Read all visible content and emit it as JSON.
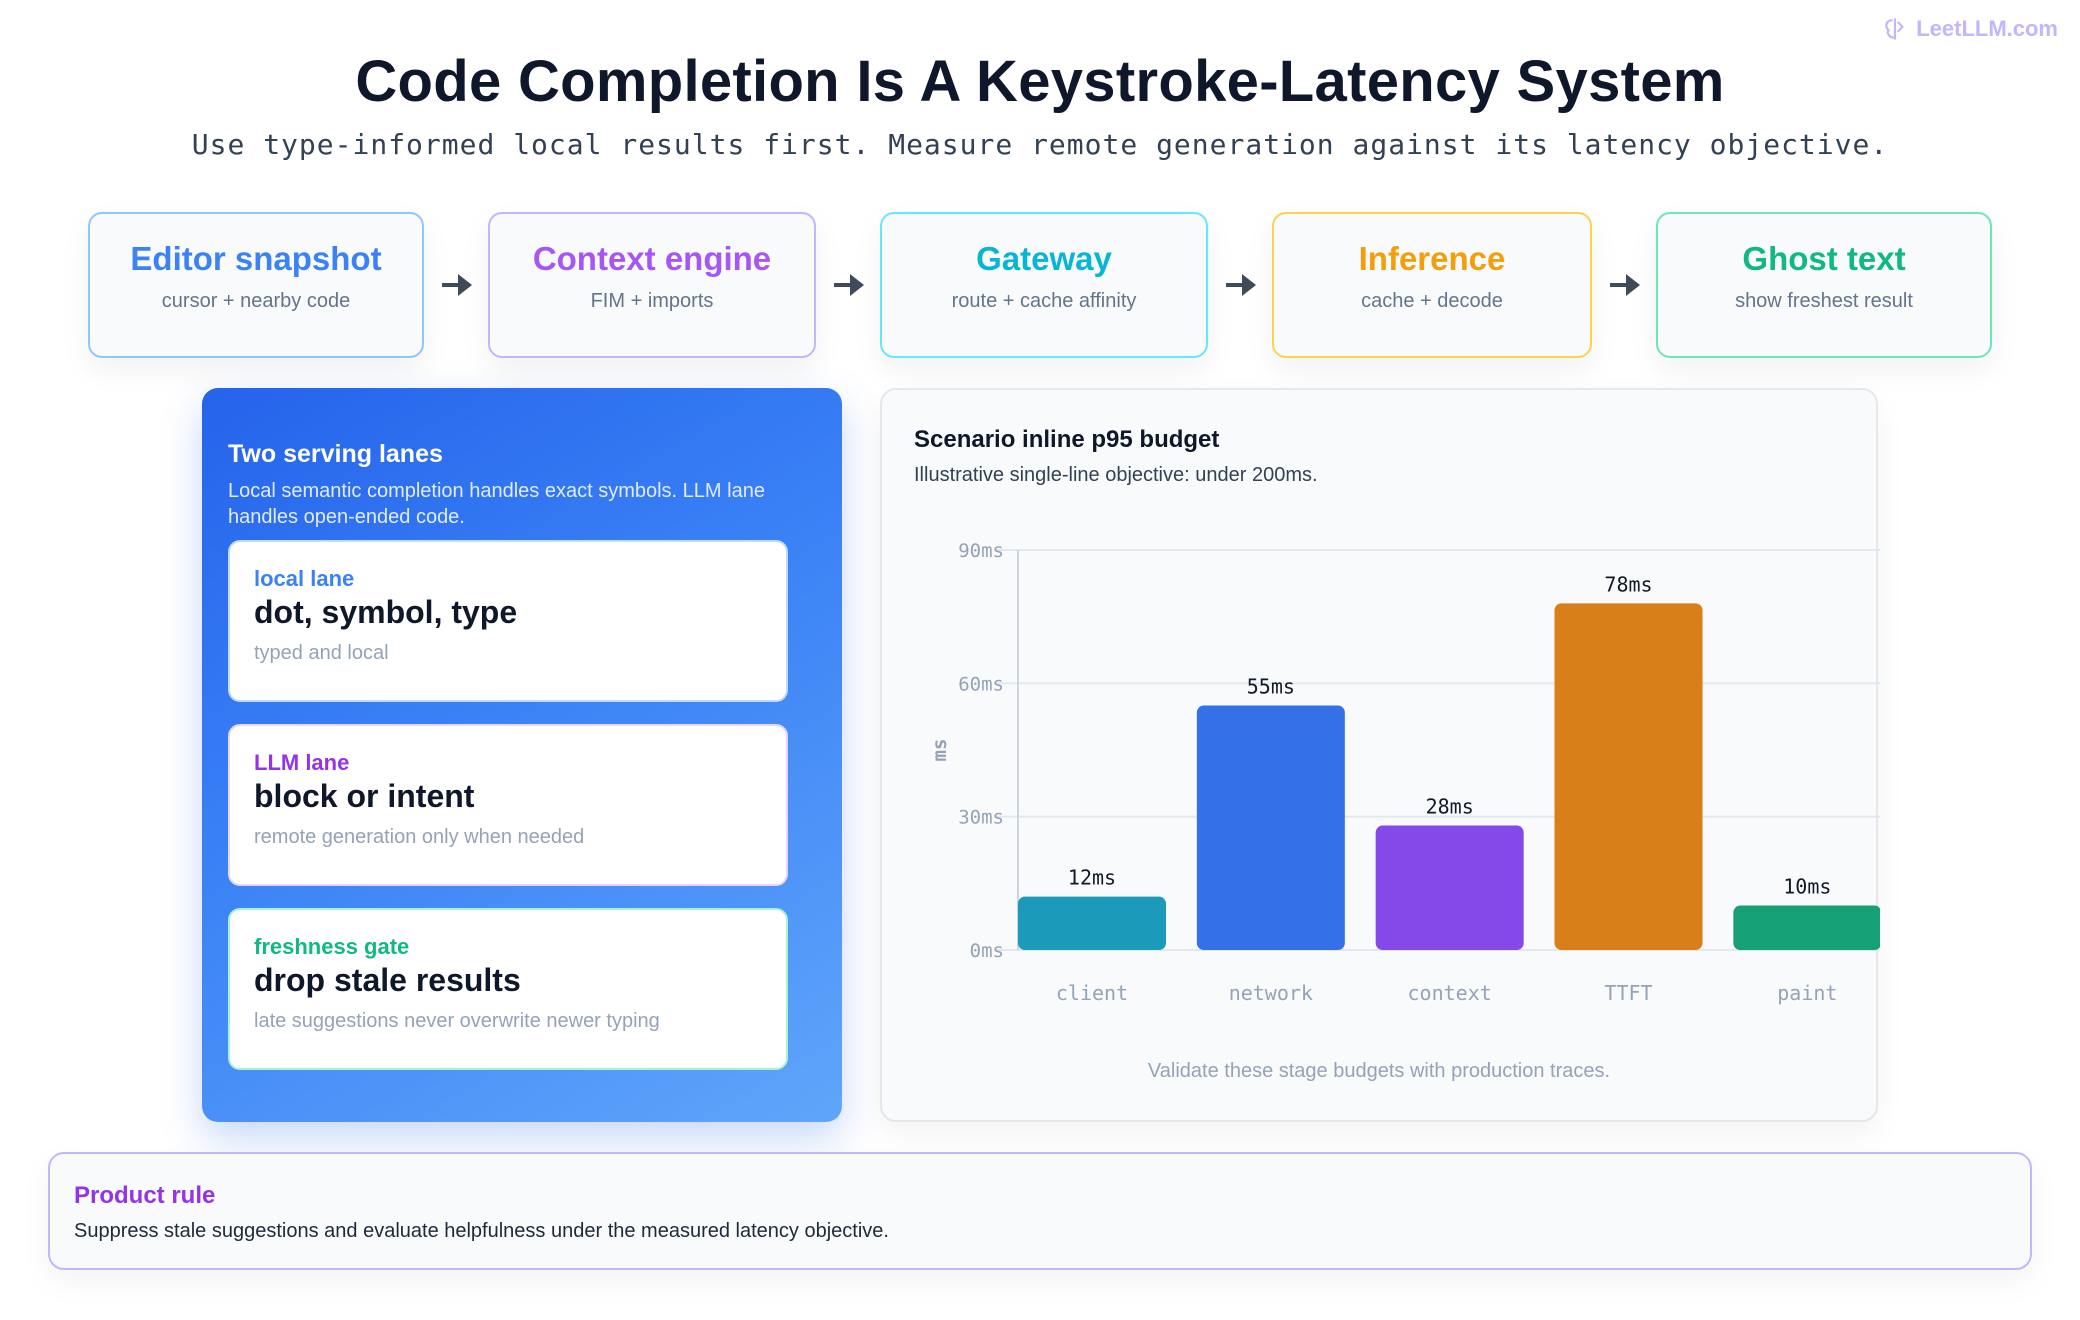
{
  "brand": {
    "text": "LeetLLM.com",
    "color": "#c4b5fd"
  },
  "header": {
    "title": "Code Completion Is A Keystroke-Latency System",
    "subtitle": "Use type-informed local results first. Measure remote generation against its latency objective."
  },
  "pipeline": {
    "stages": [
      {
        "title": "Editor snapshot",
        "sub": "cursor + nearby code",
        "color": "#3b82f6",
        "border": "#93c5fd"
      },
      {
        "title": "Context engine",
        "sub": "FIM + imports",
        "color": "#a855f7",
        "border": "#c4b5fd"
      },
      {
        "title": "Gateway",
        "sub": "route + cache affinity",
        "color": "#06b6d4",
        "border": "#67e8f9"
      },
      {
        "title": "Inference",
        "sub": "cache + decode",
        "color": "#f59e0b",
        "border": "#fcd34d"
      },
      {
        "title": "Ghost text",
        "sub": "show freshest result",
        "color": "#10b981",
        "border": "#6ee7b7"
      }
    ],
    "arrow_icon": "arrow-right-icon"
  },
  "lanes": {
    "title": "Two serving lanes",
    "description": "Local semantic completion handles exact symbols. LLM lane handles open-ended code.",
    "cards": [
      {
        "tag": "local lane",
        "head": "dot, symbol, type",
        "sub": "typed and local",
        "color": "#3b82f6",
        "border": "#bfdbfe"
      },
      {
        "tag": "LLM lane",
        "head": "block or intent",
        "sub": "remote generation only when needed",
        "color": "#9333ea",
        "border": "#e9d5ff"
      },
      {
        "tag": "freshness gate",
        "head": "drop stale results",
        "sub": "late suggestions never overwrite newer typing",
        "color": "#10b981",
        "border": "#a7f3d0"
      }
    ]
  },
  "chart_panel": {
    "title": "Scenario inline p95 budget",
    "subtitle": "Illustrative single-line objective: under 200ms.",
    "footnote": "Validate these stage budgets with production traces."
  },
  "chart_data": {
    "type": "bar",
    "categories": [
      "client",
      "network",
      "context",
      "TTFT",
      "paint"
    ],
    "values": [
      12,
      55,
      28,
      78,
      10
    ],
    "data_labels": [
      "12ms",
      "55ms",
      "28ms",
      "78ms",
      "10ms"
    ],
    "colors": [
      "#1b9aba",
      "#3471e8",
      "#8449e8",
      "#d97f19",
      "#16a075"
    ],
    "ylabel": "ms",
    "ylim": [
      0,
      90
    ],
    "yticks": [
      0,
      30,
      60,
      90
    ],
    "ytick_labels": [
      "0ms",
      "30ms",
      "60ms",
      "90ms"
    ],
    "grid": true
  },
  "rule": {
    "title": "Product rule",
    "text": "Suppress stale suggestions and evaluate helpfulness under the measured latency objective."
  }
}
